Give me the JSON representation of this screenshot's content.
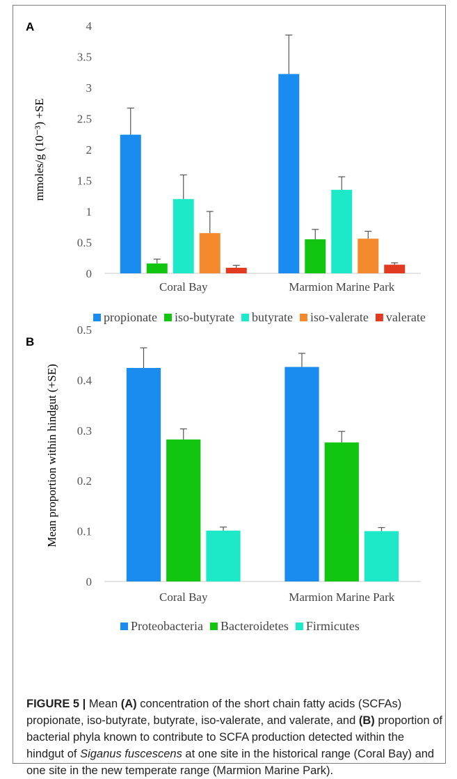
{
  "figure": {
    "caption": {
      "label": "FIGURE 5 |",
      "t1": " Mean ",
      "a": "(A)",
      "t2": " concentration of the short chain fatty acids (SCFAs) propionate, iso-butyrate, butyrate, iso-valerate, and valerate, and ",
      "b": "(B)",
      "t3": " proportion of bacterial phyla known to contribute to SCFA production detected within the hindgut of ",
      "species": "Siganus fuscescens",
      "t4": " at one site in the historical range (Coral Bay) and one site in the new temperate range (Marmion Marine Park)."
    }
  },
  "chart_data": [
    {
      "panel": "A",
      "type": "bar",
      "ylabel": "mmoles/g (10⁻³) +SE",
      "ylim": [
        0,
        4
      ],
      "yticks": [
        "0",
        "0.5",
        "1",
        "1.5",
        "2",
        "2.5",
        "3",
        "3.5",
        "4"
      ],
      "categories": [
        "Coral Bay",
        "Marmion Marine Park"
      ],
      "legend_position": "bottom",
      "series": [
        {
          "name": "propionate",
          "color": "#1a8cf0",
          "values": [
            2.24,
            3.22
          ],
          "errors": [
            0.43,
            0.63
          ]
        },
        {
          "name": "iso-butyrate",
          "color": "#11c511",
          "values": [
            0.16,
            0.55
          ],
          "errors": [
            0.07,
            0.16
          ]
        },
        {
          "name": "butyrate",
          "color": "#1de8c8",
          "values": [
            1.2,
            1.35
          ],
          "errors": [
            0.39,
            0.21
          ]
        },
        {
          "name": "iso-valerate",
          "color": "#f5892e",
          "values": [
            0.65,
            0.56
          ],
          "errors": [
            0.35,
            0.12
          ]
        },
        {
          "name": "valerate",
          "color": "#e33a22",
          "values": [
            0.09,
            0.14
          ],
          "errors": [
            0.04,
            0.03
          ]
        }
      ]
    },
    {
      "panel": "B",
      "type": "bar",
      "ylabel": "Mean proportion within hindgut (+SE)",
      "ylim": [
        0,
        0.5
      ],
      "yticks": [
        "0",
        "0.1",
        "0.2",
        "0.3",
        "0.4",
        "0.5"
      ],
      "categories": [
        "Coral Bay",
        "Marmion Marine Park"
      ],
      "legend_position": "bottom",
      "series": [
        {
          "name": "Proteobacteria",
          "color": "#1a8cf0",
          "values": [
            0.424,
            0.426
          ],
          "errors": [
            0.04,
            0.027
          ]
        },
        {
          "name": "Bacteroidetes",
          "color": "#11c511",
          "values": [
            0.282,
            0.276
          ],
          "errors": [
            0.021,
            0.022
          ]
        },
        {
          "name": "Firmicutes",
          "color": "#1de8c8",
          "values": [
            0.101,
            0.1
          ],
          "errors": [
            0.007,
            0.007
          ]
        }
      ]
    }
  ]
}
